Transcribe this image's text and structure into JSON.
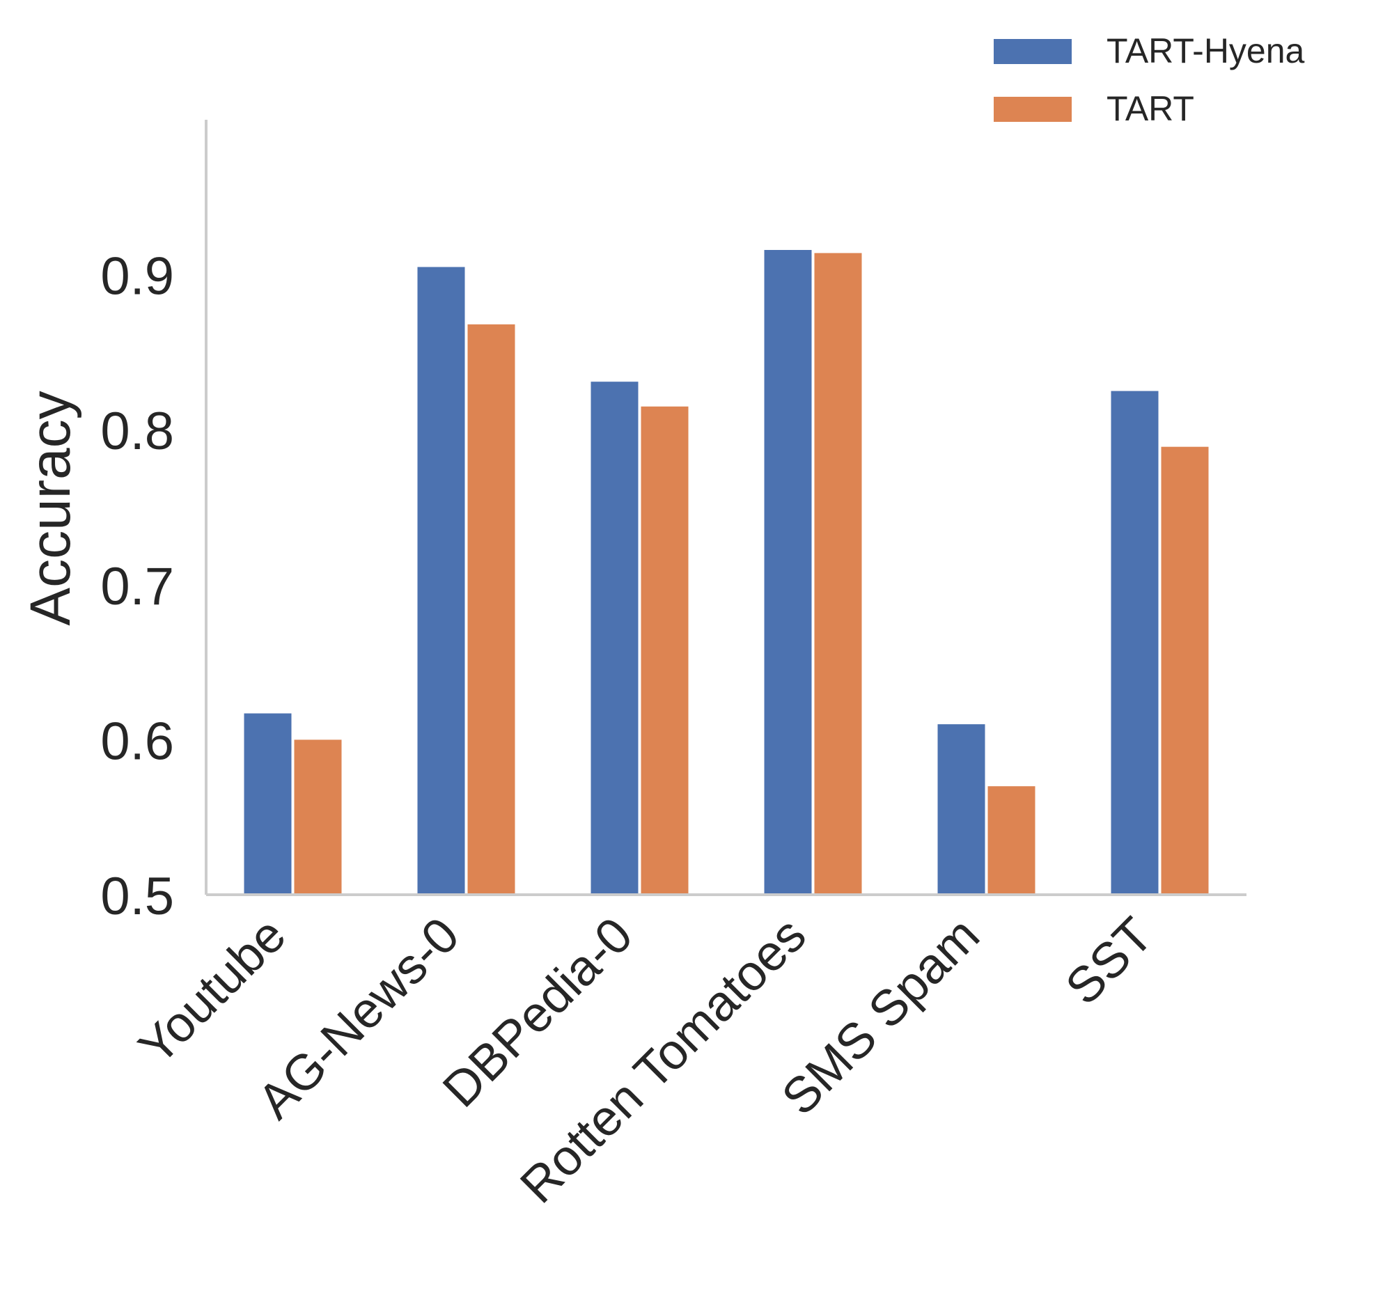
{
  "chart_data": {
    "type": "bar",
    "title": "",
    "xlabel": "",
    "ylabel": "Accuracy",
    "ylim": [
      0.5,
      1.0
    ],
    "yticks": [
      "0.5",
      "0.6",
      "0.7",
      "0.8",
      "0.9"
    ],
    "grid": false,
    "legend_position": "top-right",
    "categories": [
      "Youtube",
      "AG-News-0",
      "DBPedia-0",
      "Rotten Tomatoes",
      "SMS Spam",
      "SST"
    ],
    "series": [
      {
        "name": "TART-Hyena",
        "color": "#4C72B0",
        "values": [
          0.617,
          0.905,
          0.831,
          0.916,
          0.61,
          0.825
        ]
      },
      {
        "name": "TART",
        "color": "#DD8452",
        "values": [
          0.6,
          0.868,
          0.815,
          0.914,
          0.57,
          0.789
        ]
      }
    ]
  }
}
